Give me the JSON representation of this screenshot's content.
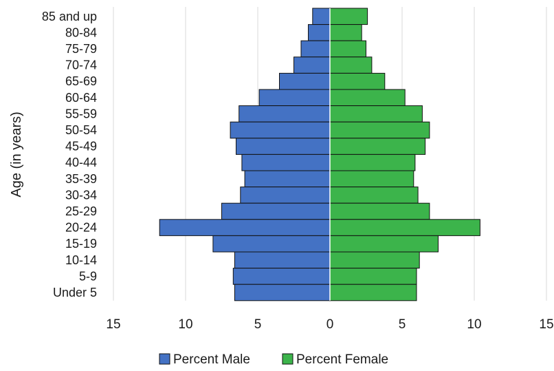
{
  "chart_data": {
    "type": "bar",
    "orientation": "horizontal",
    "layout": "population-pyramid",
    "categories": [
      "85 and up",
      "80-84",
      "75-79",
      "70-74",
      "65-69",
      "60-64",
      "55-59",
      "50-54",
      "45-49",
      "40-44",
      "35-39",
      "30-34",
      "25-29",
      "20-24",
      "15-19",
      "10-14",
      "5-9",
      "Under 5"
    ],
    "series": [
      {
        "name": "Percent Male",
        "color": "#4472c4",
        "values": [
          1.2,
          1.5,
          2.0,
          2.5,
          3.5,
          4.9,
          6.3,
          6.9,
          6.5,
          6.1,
          5.9,
          6.2,
          7.5,
          11.8,
          8.1,
          6.6,
          6.7,
          6.6
        ]
      },
      {
        "name": "Percent Female",
        "color": "#3cb44b",
        "values": [
          2.6,
          2.2,
          2.5,
          2.9,
          3.8,
          5.2,
          6.4,
          6.9,
          6.6,
          5.9,
          5.8,
          6.1,
          6.9,
          10.4,
          7.5,
          6.2,
          6.0,
          6.0
        ]
      }
    ],
    "xticks": [
      "15",
      "10",
      "5",
      "0",
      "5",
      "10",
      "15"
    ],
    "xlim": [
      -15,
      15
    ],
    "ylabel": "Age (in years)",
    "xlabel": "",
    "grid": "vertical",
    "legend": "bottom"
  }
}
